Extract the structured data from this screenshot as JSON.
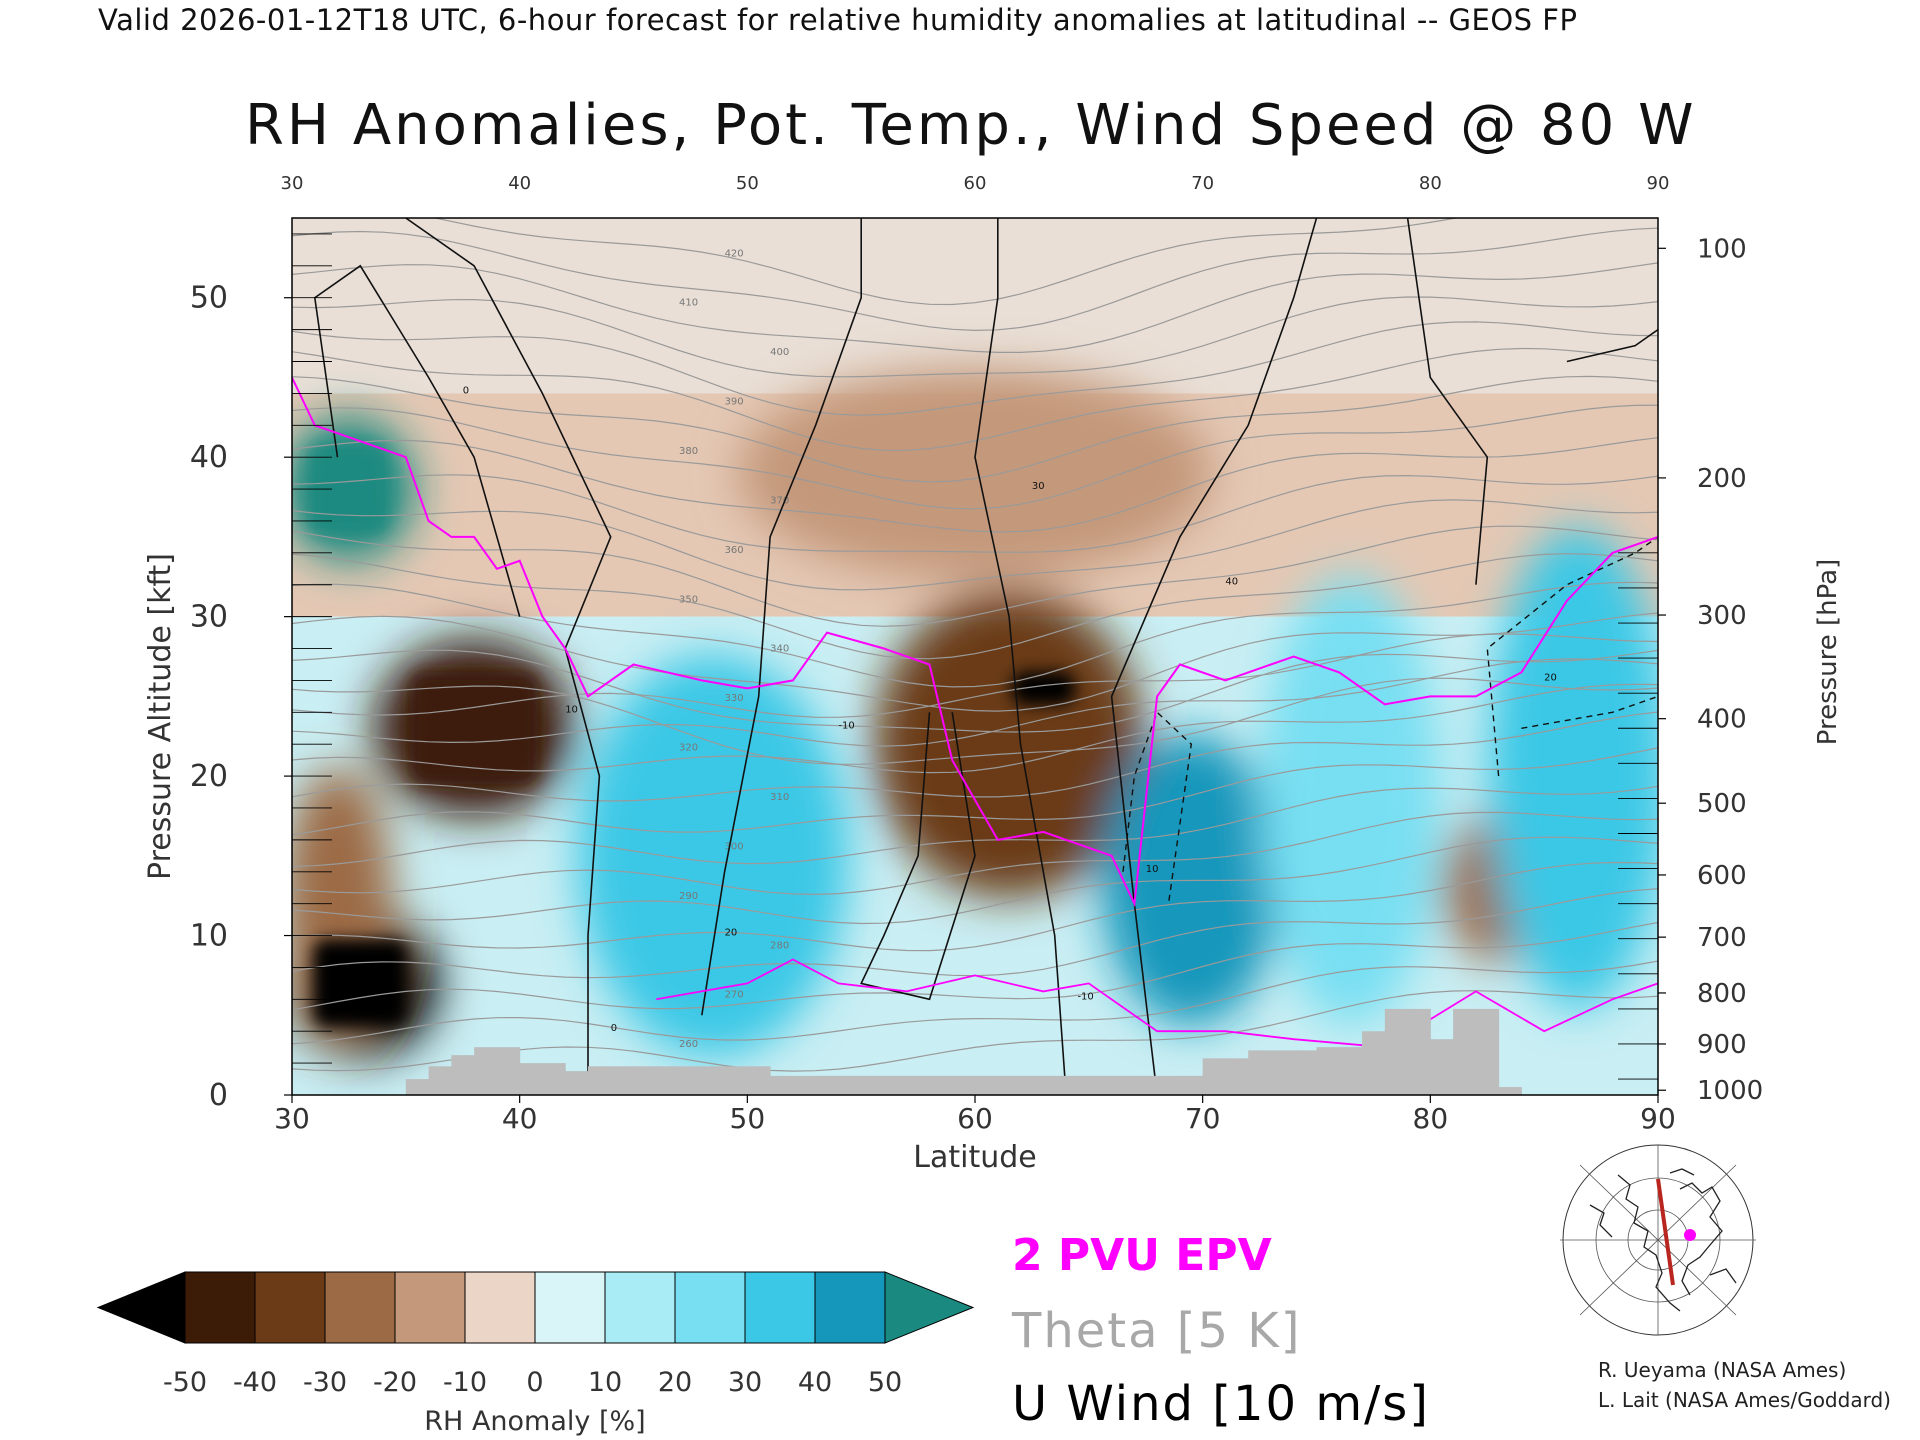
{
  "header": {
    "text": "Valid 2026-01-12T18 UTC, 6-hour forecast for relative humidity anomalies at latitudinal -- GEOS FP"
  },
  "chart_data": {
    "type": "heatmap",
    "title": "RH Anomalies, Pot. Temp., Wind Speed @ 80 W",
    "xlabel": "Latitude",
    "ylabel_left": "Pressure Altitude [kft]",
    "ylabel_right": "Pressure [hPa]",
    "xlim": [
      30,
      90
    ],
    "ylim": [
      0,
      55
    ],
    "x_ticks": [
      "30",
      "40",
      "50",
      "60",
      "70",
      "80",
      "90"
    ],
    "top_x_ticks": [
      "30",
      "40",
      "50",
      "60",
      "70",
      "80",
      "90"
    ],
    "left_y_ticks": [
      {
        "label": "0",
        "value": 0
      },
      {
        "label": "10",
        "value": 10
      },
      {
        "label": "20",
        "value": 20
      },
      {
        "label": "30",
        "value": 30
      },
      {
        "label": "40",
        "value": 40
      },
      {
        "label": "50",
        "value": 50
      }
    ],
    "right_y_ticks": [
      {
        "label": "100",
        "kft": 53.1
      },
      {
        "label": "200",
        "kft": 38.7
      },
      {
        "label": "300",
        "kft": 30.1
      },
      {
        "label": "400",
        "kft": 23.6
      },
      {
        "label": "500",
        "kft": 18.3
      },
      {
        "label": "600",
        "kft": 13.8
      },
      {
        "label": "700",
        "kft": 9.9
      },
      {
        "label": "800",
        "kft": 6.4
      },
      {
        "label": "900",
        "kft": 3.2
      },
      {
        "label": "1000",
        "kft": 0.3
      }
    ],
    "colorbar": {
      "label": "RH Anomaly [%]",
      "ticks": [
        "-50",
        "-40",
        "-30",
        "-20",
        "-10",
        "0",
        "10",
        "20",
        "30",
        "40",
        "50"
      ],
      "under_color": "#000000",
      "over_color": "#1a8a80",
      "bins": [
        {
          "range": [
            -50,
            -40
          ],
          "color": "#3d1c07"
        },
        {
          "range": [
            -40,
            -30
          ],
          "color": "#6b3a16"
        },
        {
          "range": [
            -30,
            -20
          ],
          "color": "#9c6a44"
        },
        {
          "range": [
            -20,
            -10
          ],
          "color": "#c4987a"
        },
        {
          "range": [
            -10,
            0
          ],
          "color": "#ebd5c6"
        },
        {
          "range": [
            0,
            10
          ],
          "color": "#d9f5f8"
        },
        {
          "range": [
            10,
            20
          ],
          "color": "#a9ecf6"
        },
        {
          "range": [
            20,
            30
          ],
          "color": "#78dff2"
        },
        {
          "range": [
            30,
            40
          ],
          "color": "#3bc8e6"
        },
        {
          "range": [
            40,
            50
          ],
          "color": "#1597bb"
        }
      ]
    },
    "legend": {
      "epv": {
        "label": "2 PVU EPV",
        "color": "#ff00ff"
      },
      "theta": {
        "label": "Theta [5 K]",
        "color": "#a8a8a8"
      },
      "uwind": {
        "label": "U Wind [10 m/s]",
        "color": "#000000"
      }
    },
    "theta_contour_labels": [
      "260",
      "270",
      "280",
      "290",
      "300",
      "310",
      "320",
      "330",
      "340",
      "350",
      "360",
      "370",
      "380",
      "390",
      "400",
      "410",
      "420"
    ],
    "uwind_contour_labels": [
      "-10",
      "0",
      "10",
      "20",
      "30",
      "40"
    ],
    "anomaly_regions": [
      {
        "lat": [
          30,
          36
        ],
        "kft": [
          3,
          11
        ],
        "value": -55
      },
      {
        "lat": [
          34,
          42
        ],
        "kft": [
          18,
          28
        ],
        "value": -45
      },
      {
        "lat": [
          30,
          34
        ],
        "kft": [
          4,
          20
        ],
        "value": -30
      },
      {
        "lat": [
          61,
          65
        ],
        "kft": [
          24,
          27
        ],
        "value": -55
      },
      {
        "lat": [
          56,
          67
        ],
        "kft": [
          13,
          31
        ],
        "value": -35
      },
      {
        "lat": [
          50,
          70
        ],
        "kft": [
          33,
          45
        ],
        "value": -15
      },
      {
        "lat": [
          81,
          85
        ],
        "kft": [
          9,
          17
        ],
        "value": -30
      },
      {
        "lat": [
          30,
          35
        ],
        "kft": [
          34,
          42
        ],
        "value": 55
      },
      {
        "lat": [
          43,
          54
        ],
        "kft": [
          3,
          27
        ],
        "value": 30
      },
      {
        "lat": [
          66,
          73
        ],
        "kft": [
          5,
          22
        ],
        "value": 40
      },
      {
        "lat": [
          73,
          80
        ],
        "kft": [
          5,
          32
        ],
        "value": 28
      },
      {
        "lat": [
          83,
          90
        ],
        "kft": [
          6,
          35
        ],
        "value": 35
      }
    ]
  },
  "map_inset": {
    "name": "cross-section location map"
  },
  "credits": {
    "line1": "R. Ueyama (NASA Ames)",
    "line2": "L. Lait (NASA Ames/Goddard)"
  }
}
